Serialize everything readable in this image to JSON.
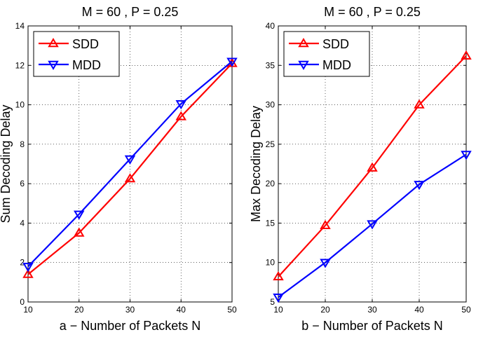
{
  "chart_data": [
    {
      "type": "line",
      "title": "M = 60 , P = 0.25",
      "xlabel": "a − Number of Packets N",
      "ylabel": "Sum Decoding Delay",
      "x": [
        10,
        20,
        30,
        40,
        50
      ],
      "xlim": [
        10,
        50
      ],
      "ylim": [
        0,
        14
      ],
      "xticks": [
        "10",
        "20",
        "30",
        "40",
        "50"
      ],
      "yticks": [
        "0",
        "2",
        "4",
        "6",
        "8",
        "10",
        "12",
        "14"
      ],
      "grid": true,
      "legend_position": "top-left",
      "series": [
        {
          "name": "SDD",
          "color": "#ff0000",
          "marker": "triangle-up",
          "values": [
            1.4,
            3.5,
            6.25,
            9.4,
            12.1
          ]
        },
        {
          "name": "MDD",
          "color": "#0000ff",
          "marker": "triangle-down",
          "values": [
            1.8,
            4.45,
            7.25,
            10.05,
            12.2
          ]
        }
      ]
    },
    {
      "type": "line",
      "title": "M = 60 , P = 0.25",
      "xlabel": "b − Number of Packets N",
      "ylabel": "Max Decoding Delay",
      "x": [
        10,
        20,
        30,
        40,
        50
      ],
      "xlim": [
        10,
        50
      ],
      "ylim": [
        5,
        40
      ],
      "xticks": [
        "10",
        "20",
        "30",
        "40",
        "50"
      ],
      "yticks": [
        "5",
        "10",
        "15",
        "20",
        "25",
        "30",
        "35",
        "40"
      ],
      "grid": true,
      "legend_position": "top-left",
      "series": [
        {
          "name": "SDD",
          "color": "#ff0000",
          "marker": "triangle-up",
          "values": [
            8.2,
            14.7,
            22.0,
            30.0,
            36.2
          ]
        },
        {
          "name": "MDD",
          "color": "#0000ff",
          "marker": "triangle-down",
          "values": [
            5.6,
            10.0,
            14.9,
            19.9,
            23.7
          ]
        }
      ]
    }
  ]
}
